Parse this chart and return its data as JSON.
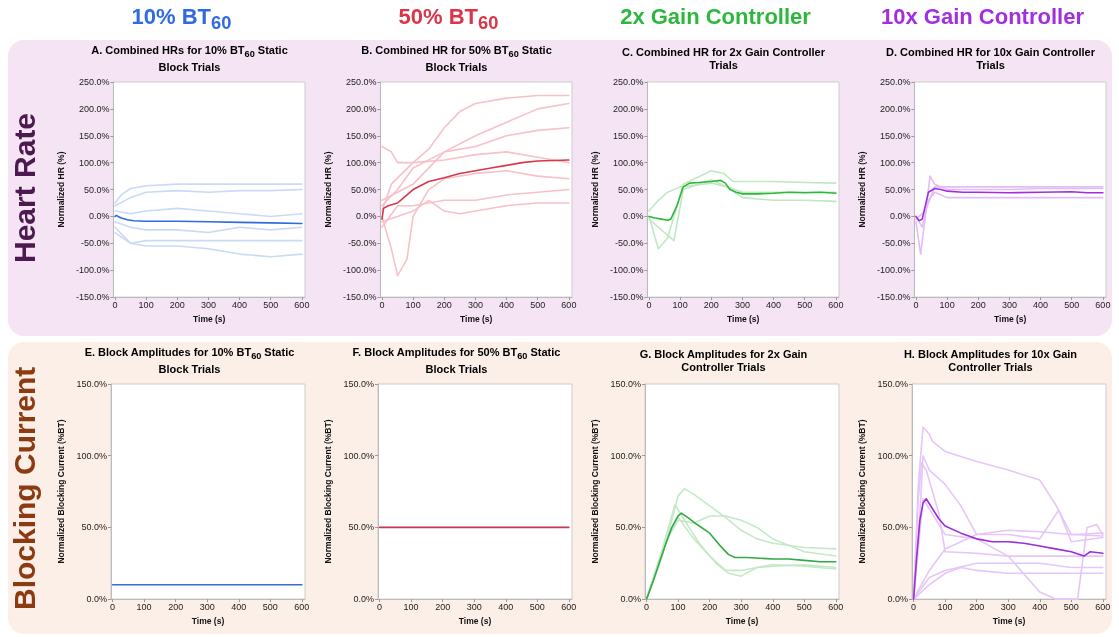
{
  "chart_data": [
    {
      "type": "line",
      "title": "A. Combined HRs for 10% BT$_{60}$ Static Block Trials",
      "xlabel": "Time (s)",
      "ylabel": "Normalized HR (%)",
      "annotations": [
        "10% BT$_{60}$",
        "Heart Rate"
      ],
      "xlim": [
        -5,
        610
      ],
      "xticks": [
        0,
        100,
        200,
        300,
        400,
        500,
        600
      ],
      "ylim": [
        -150,
        250
      ],
      "yticks": [
        {
          "value": -150,
          "label": "-150.0%"
        },
        {
          "value": -100,
          "label": "-100.0%"
        },
        {
          "value": -50,
          "label": "-50.0%"
        },
        {
          "value": 0,
          "label": "0.0%"
        },
        {
          "value": 50,
          "label": "50.0%"
        },
        {
          "value": 100,
          "label": "100.0%"
        },
        {
          "value": 150,
          "label": "150.0%"
        },
        {
          "value": 200,
          "label": "200.0%"
        },
        {
          "value": 250,
          "label": "250.0%"
        }
      ],
      "grid": false,
      "series": [
        {
          "color": "#c9daf7",
          "x": [
            0,
            20,
            50,
            100,
            200,
            300,
            400,
            500,
            600
          ],
          "values": [
            25,
            40,
            52,
            57,
            60,
            60,
            60,
            60,
            60
          ]
        },
        {
          "color": "#c9daf7",
          "x": [
            0,
            50,
            100,
            200,
            300,
            400,
            500,
            600
          ],
          "values": [
            20,
            35,
            45,
            48,
            45,
            48,
            48,
            50
          ]
        },
        {
          "color": "#c9daf7",
          "x": [
            0,
            50,
            100,
            200,
            300,
            400,
            500,
            600
          ],
          "values": [
            10,
            5,
            10,
            15,
            10,
            5,
            0,
            5
          ]
        },
        {
          "color": "#c9daf7",
          "x": [
            0,
            50,
            100,
            200,
            300,
            400,
            500,
            600
          ],
          "values": [
            -10,
            -20,
            -25,
            -25,
            -30,
            -20,
            -25,
            -20
          ]
        },
        {
          "color": "#c9daf7",
          "x": [
            0,
            50,
            100,
            200,
            300,
            400,
            500,
            600
          ],
          "values": [
            -20,
            -50,
            -45,
            -45,
            -45,
            -45,
            -45,
            -45
          ]
        },
        {
          "color": "#c9daf7",
          "x": [
            0,
            50,
            100,
            200,
            300,
            400,
            500,
            600
          ],
          "values": [
            -30,
            -50,
            -55,
            -55,
            -60,
            -70,
            -75,
            -70
          ]
        },
        {
          "color": "#2f6ae0",
          "x": [
            0,
            5,
            10,
            20,
            40,
            60,
            100,
            150,
            200,
            300,
            400,
            500,
            600
          ],
          "values": [
            0,
            2,
            0,
            -3,
            -6,
            -8,
            -9,
            -9,
            -9,
            -10,
            -11,
            -12,
            -13
          ]
        }
      ]
    },
    {
      "type": "line",
      "title": "B. Combined HR for 50% BT$_{60}$ Static Block Trials",
      "xlabel": "Time (s)",
      "ylabel": "Normalized HR (%)",
      "annotations": [
        "50% BT$_{60}$"
      ],
      "xlim": [
        -5,
        610
      ],
      "xticks": [
        0,
        100,
        200,
        300,
        400,
        500,
        600
      ],
      "ylim": [
        -150,
        250
      ],
      "yticks": [
        {
          "value": -150,
          "label": "-150.0%"
        },
        {
          "value": -100,
          "label": "-100.0%"
        },
        {
          "value": -50,
          "label": "-50.0%"
        },
        {
          "value": 0,
          "label": "0.0%"
        },
        {
          "value": 50,
          "label": "50.0%"
        },
        {
          "value": 100,
          "label": "100.0%"
        },
        {
          "value": 150,
          "label": "150.0%"
        },
        {
          "value": 200,
          "label": "200.0%"
        },
        {
          "value": 250,
          "label": "250.0%"
        }
      ],
      "grid": false,
      "series": [
        {
          "color": "#f7c1c7",
          "x": [
            0,
            30,
            100,
            150,
            200,
            250,
            300,
            400,
            500,
            600
          ],
          "values": [
            10,
            60,
            100,
            125,
            165,
            195,
            210,
            220,
            225,
            225
          ]
        },
        {
          "color": "#f7c1c7",
          "x": [
            0,
            50,
            100,
            200,
            300,
            400,
            500,
            600
          ],
          "values": [
            20,
            50,
            90,
            120,
            150,
            175,
            200,
            210
          ]
        },
        {
          "color": "#f7c1c7",
          "x": [
            0,
            30,
            50,
            100,
            200,
            300,
            400,
            500,
            600
          ],
          "values": [
            130,
            120,
            100,
            100,
            105,
            115,
            120,
            110,
            100
          ]
        },
        {
          "color": "#f7c1c7",
          "x": [
            0,
            30,
            50,
            80,
            100,
            150,
            200,
            300,
            400,
            500,
            600
          ],
          "values": [
            0,
            -60,
            -110,
            -80,
            0,
            50,
            70,
            80,
            85,
            75,
            70
          ]
        },
        {
          "color": "#f7c1c7",
          "x": [
            0,
            50,
            100,
            200,
            300,
            400,
            500,
            600
          ],
          "values": [
            -20,
            20,
            20,
            30,
            30,
            40,
            45,
            50
          ]
        },
        {
          "color": "#f7c1c7",
          "x": [
            0,
            50,
            100,
            150,
            200,
            250,
            300,
            400,
            500,
            600
          ],
          "values": [
            -10,
            0,
            10,
            30,
            10,
            5,
            10,
            20,
            25,
            25
          ]
        },
        {
          "color": "#f7c1c7",
          "x": [
            0,
            100,
            200,
            300,
            400,
            500,
            600
          ],
          "values": [
            30,
            60,
            120,
            130,
            150,
            160,
            165
          ]
        },
        {
          "color": "#d9364a",
          "x": [
            0,
            5,
            20,
            50,
            70,
            100,
            150,
            200,
            250,
            300,
            350,
            400,
            450,
            500,
            550,
            600
          ],
          "values": [
            -5,
            15,
            20,
            25,
            35,
            50,
            65,
            72,
            80,
            85,
            90,
            95,
            100,
            103,
            104,
            105
          ]
        }
      ]
    },
    {
      "type": "line",
      "title": "C. Combined HR for 2x Gain Controller Trials",
      "xlabel": "Time (s)",
      "ylabel": "Normalized HR (%)",
      "annotations": [
        "2x Gain Controller"
      ],
      "xlim": [
        -5,
        610
      ],
      "xticks": [
        0,
        100,
        200,
        300,
        400,
        500,
        600
      ],
      "ylim": [
        -150,
        250
      ],
      "yticks": [
        {
          "value": -150,
          "label": "-150.0%"
        },
        {
          "value": -100,
          "label": "-100.0%"
        },
        {
          "value": -50,
          "label": "-50.0%"
        },
        {
          "value": 0,
          "label": "0.0%"
        },
        {
          "value": 50,
          "label": "50.0%"
        },
        {
          "value": 100,
          "label": "100.0%"
        },
        {
          "value": 150,
          "label": "150.0%"
        },
        {
          "value": 200,
          "label": "200.0%"
        },
        {
          "value": 250,
          "label": "250.0%"
        }
      ],
      "grid": false,
      "series": [
        {
          "color": "#bfe8c2",
          "x": [
            0,
            30,
            60,
            90,
            110,
            200,
            240,
            270,
            300,
            400,
            500,
            600
          ],
          "values": [
            0,
            -60,
            -40,
            20,
            60,
            85,
            80,
            65,
            65,
            65,
            63,
            62
          ]
        },
        {
          "color": "#bfe8c2",
          "x": [
            0,
            30,
            60,
            100,
            200,
            250,
            300,
            400,
            500,
            600
          ],
          "values": [
            10,
            30,
            45,
            55,
            62,
            55,
            35,
            30,
            30,
            28
          ]
        },
        {
          "color": "#bfe8c2",
          "x": [
            0,
            50,
            80,
            110,
            200,
            250,
            300,
            400,
            500,
            600
          ],
          "values": [
            -5,
            -30,
            -45,
            50,
            68,
            55,
            45,
            45,
            45,
            45
          ]
        },
        {
          "color": "#2db83d",
          "x": [
            0,
            20,
            40,
            60,
            70,
            90,
            110,
            130,
            160,
            200,
            230,
            245,
            260,
            280,
            300,
            350,
            400,
            450,
            500,
            550,
            600
          ],
          "values": [
            0,
            -3,
            -5,
            -7,
            -5,
            20,
            55,
            62,
            63,
            65,
            67,
            62,
            50,
            45,
            42,
            42,
            43,
            45,
            44,
            45,
            43
          ]
        }
      ]
    },
    {
      "type": "line",
      "title": "D. Combined HR for 10x Gain Controller Trials",
      "xlabel": "Time (s)",
      "ylabel": "Normalized HR (%)",
      "annotations": [
        "10x Gain Controller"
      ],
      "xlim": [
        -5,
        610
      ],
      "xticks": [
        0,
        100,
        200,
        300,
        400,
        500,
        600
      ],
      "ylim": [
        -150,
        250
      ],
      "yticks": [
        {
          "value": -150,
          "label": "-150.0%"
        },
        {
          "value": -100,
          "label": "-100.0%"
        },
        {
          "value": -50,
          "label": "-50.0%"
        },
        {
          "value": 0,
          "label": "0.0%"
        },
        {
          "value": 50,
          "label": "50.0%"
        },
        {
          "value": 100,
          "label": "100.0%"
        },
        {
          "value": 150,
          "label": "150.0%"
        },
        {
          "value": 200,
          "label": "200.0%"
        },
        {
          "value": 250,
          "label": "250.0%"
        }
      ],
      "grid": false,
      "series": [
        {
          "color": "#e2bdf5",
          "x": [
            0,
            15,
            30,
            45,
            60,
            100,
            200,
            300,
            400,
            500,
            600
          ],
          "values": [
            -10,
            -70,
            0,
            75,
            60,
            50,
            50,
            50,
            52,
            52,
            52
          ]
        },
        {
          "color": "#e2bdf5",
          "x": [
            0,
            20,
            40,
            60,
            100,
            200,
            300,
            400,
            500,
            600
          ],
          "values": [
            0,
            -20,
            30,
            45,
            35,
            35,
            35,
            35,
            35,
            35
          ]
        },
        {
          "color": "#e2bdf5",
          "x": [
            0,
            30,
            60,
            100,
            200,
            300,
            400,
            500,
            600
          ],
          "values": [
            -5,
            10,
            55,
            55,
            55,
            55,
            55,
            55,
            55
          ]
        },
        {
          "color": "#a22ee0",
          "x": [
            0,
            10,
            20,
            30,
            40,
            60,
            80,
            100,
            150,
            200,
            300,
            400,
            500,
            550,
            600
          ],
          "values": [
            0,
            -8,
            -5,
            20,
            45,
            52,
            50,
            47,
            45,
            45,
            44,
            45,
            46,
            44,
            44
          ]
        }
      ]
    },
    {
      "type": "line",
      "title": "E. Block Amplitudes for 10% BT$_{60}$ Static Block Trials",
      "xlabel": "Time (s)",
      "ylabel": "Normalized Blocking Current (%BT)",
      "annotations": [
        "Blocking Current"
      ],
      "xlim": [
        -5,
        610
      ],
      "xticks": [
        0,
        100,
        200,
        300,
        400,
        500,
        600
      ],
      "ylim": [
        0,
        150
      ],
      "yticks": [
        {
          "value": 0,
          "label": "0.0%"
        },
        {
          "value": 50,
          "label": "50.0%"
        },
        {
          "value": 100,
          "label": "100.0%"
        },
        {
          "value": 150,
          "label": "150.0%"
        }
      ],
      "grid": false,
      "series": [
        {
          "color": "#3a6bd6",
          "x": [
            0,
            600
          ],
          "values": [
            10,
            10
          ]
        }
      ]
    },
    {
      "type": "line",
      "title": "F. Block Amplitudes for 50% BT$_{60}$ Static Block Trials",
      "xlabel": "Time (s)",
      "ylabel": "Normalized Blocking Current (%BT)",
      "xlim": [
        -5,
        610
      ],
      "xticks": [
        0,
        100,
        200,
        300,
        400,
        500,
        600
      ],
      "ylim": [
        0,
        150
      ],
      "yticks": [
        {
          "value": 0,
          "label": "0.0%"
        },
        {
          "value": 50,
          "label": "50.0%"
        },
        {
          "value": 100,
          "label": "100.0%"
        },
        {
          "value": 150,
          "label": "150.0%"
        }
      ],
      "grid": false,
      "series": [
        {
          "color": "#c4394f",
          "x": [
            0,
            600
          ],
          "values": [
            50,
            50
          ]
        }
      ]
    },
    {
      "type": "line",
      "title": "G. Block Amplitudes for 2x Gain Controller Trials",
      "xlabel": "Time (s)",
      "ylabel": "Normalized Blocking Current (%BT)",
      "xlim": [
        -5,
        610
      ],
      "xticks": [
        0,
        100,
        200,
        300,
        400,
        500,
        600
      ],
      "ylim": [
        0,
        150
      ],
      "yticks": [
        {
          "value": 0,
          "label": "0.0%"
        },
        {
          "value": 50,
          "label": "50.0%"
        },
        {
          "value": 100,
          "label": "100.0%"
        },
        {
          "value": 150,
          "label": "150.0%"
        }
      ],
      "grid": false,
      "series": [
        {
          "color": "#c3e9c6",
          "x": [
            0,
            50,
            100,
            120,
            150,
            200,
            250,
            300,
            350,
            400,
            500,
            600
          ],
          "values": [
            0,
            30,
            72,
            77,
            73,
            65,
            57,
            48,
            42,
            39,
            36,
            35
          ]
        },
        {
          "color": "#c3e9c6",
          "x": [
            0,
            60,
            100,
            150,
            200,
            250,
            300,
            350,
            400,
            500,
            600
          ],
          "values": [
            0,
            40,
            55,
            53,
            58,
            58,
            55,
            50,
            42,
            33,
            30
          ]
        },
        {
          "color": "#c3e9c6",
          "x": [
            0,
            50,
            90,
            120,
            170,
            220,
            260,
            300,
            350,
            400,
            500,
            600
          ],
          "values": [
            0,
            35,
            66,
            55,
            38,
            25,
            18,
            16,
            22,
            23,
            24,
            22
          ]
        },
        {
          "color": "#c3e9c6",
          "x": [
            0,
            60,
            100,
            150,
            200,
            250,
            300,
            350,
            400,
            500,
            600
          ],
          "values": [
            0,
            40,
            57,
            42,
            30,
            20,
            20,
            22,
            24,
            23,
            21
          ]
        },
        {
          "color": "#33aa44",
          "x": [
            0,
            20,
            40,
            60,
            80,
            100,
            110,
            130,
            160,
            200,
            230,
            260,
            280,
            320,
            400,
            450,
            500,
            550,
            600
          ],
          "values": [
            0,
            12,
            25,
            38,
            50,
            58,
            60,
            57,
            52,
            46,
            38,
            31,
            29,
            29,
            28,
            28,
            27,
            26,
            26
          ]
        }
      ]
    },
    {
      "type": "line",
      "title": "H. Block Amplitudes for 10x Gain Controller Trials",
      "xlabel": "Time (s)",
      "ylabel": "Normalized Blocking Current (%BT)",
      "xlim": [
        -5,
        610
      ],
      "xticks": [
        0,
        100,
        200,
        300,
        400,
        500,
        600
      ],
      "ylim": [
        0,
        150
      ],
      "yticks": [
        {
          "value": 0,
          "label": "0.0%"
        },
        {
          "value": 50,
          "label": "50.0%"
        },
        {
          "value": 100,
          "label": "100.0%"
        },
        {
          "value": 150,
          "label": "150.0%"
        }
      ],
      "grid": false,
      "series": [
        {
          "color": "#e6c6f6",
          "x": [
            0,
            15,
            30,
            50,
            60,
            100,
            200,
            300,
            400,
            450,
            500,
            600
          ],
          "values": [
            0,
            80,
            120,
            115,
            110,
            103,
            96,
            90,
            83,
            66,
            45,
            44
          ]
        },
        {
          "color": "#e6c6f6",
          "x": [
            0,
            15,
            25,
            40,
            60,
            80,
            100,
            200,
            300,
            400,
            500,
            600
          ],
          "values": [
            0,
            70,
            95,
            90,
            75,
            60,
            33,
            32,
            30,
            30,
            30,
            30
          ]
        },
        {
          "color": "#e6c6f6",
          "x": [
            0,
            20,
            30,
            50,
            100,
            150,
            200,
            300,
            400,
            460,
            500,
            600
          ],
          "values": [
            0,
            60,
            100,
            90,
            80,
            65,
            45,
            45,
            42,
            62,
            40,
            43
          ]
        },
        {
          "color": "#e6c6f6",
          "x": [
            0,
            50,
            100,
            200,
            300,
            400,
            500,
            600
          ],
          "values": [
            0,
            20,
            35,
            45,
            48,
            47,
            45,
            46
          ]
        },
        {
          "color": "#e6c6f6",
          "x": [
            0,
            50,
            100,
            200,
            300,
            400,
            500,
            600
          ],
          "values": [
            0,
            15,
            20,
            25,
            25,
            25,
            22,
            22
          ]
        },
        {
          "color": "#e6c6f6",
          "x": [
            0,
            50,
            100,
            150,
            200,
            300,
            400,
            500,
            600
          ],
          "values": [
            0,
            10,
            18,
            22,
            20,
            18,
            18,
            18,
            18
          ]
        },
        {
          "color": "#e6c6f6",
          "x": [
            0,
            30,
            100,
            200,
            300,
            400,
            450,
            520,
            550,
            580,
            600
          ],
          "values": [
            0,
            70,
            45,
            42,
            30,
            5,
            0,
            0,
            50,
            52,
            45
          ]
        },
        {
          "color": "#9a2ed8",
          "x": [
            0,
            10,
            20,
            30,
            40,
            60,
            80,
            100,
            150,
            200,
            250,
            300,
            350,
            400,
            450,
            500,
            540,
            560,
            600
          ],
          "values": [
            0,
            30,
            55,
            67,
            70,
            63,
            56,
            51,
            46,
            42,
            40,
            40,
            39,
            37,
            35,
            33,
            30,
            33,
            32
          ]
        }
      ]
    }
  ]
}
